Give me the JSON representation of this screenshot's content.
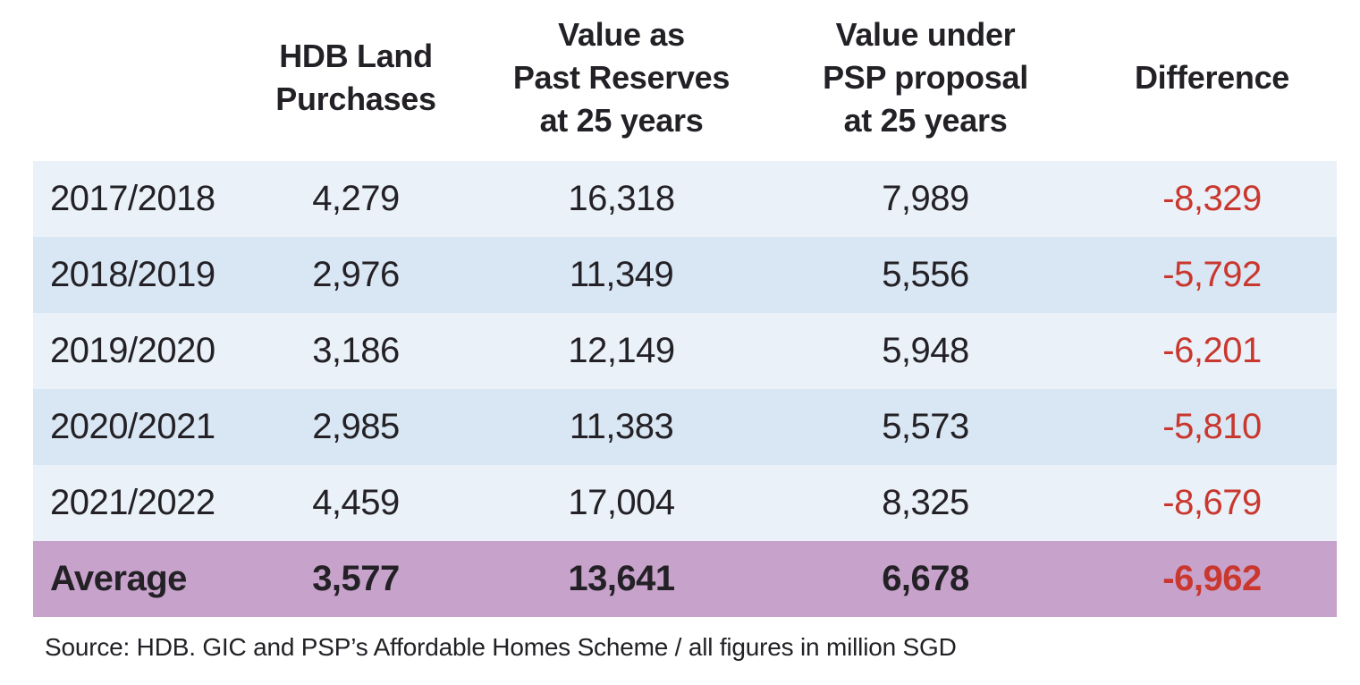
{
  "table": {
    "headers": {
      "year": "",
      "col1": "HDB Land\nPurchases",
      "col2": "Value as\nPast Reserves\nat 25 years",
      "col3": "Value under\nPSP proposal\nat 25 years",
      "col4": "Difference"
    },
    "rows": [
      {
        "year": "2017/2018",
        "hdb_land_purchases": "4,279",
        "value_past_reserves": "16,318",
        "value_psp_proposal": "7,989",
        "difference": "-8,329"
      },
      {
        "year": "2018/2019",
        "hdb_land_purchases": "2,976",
        "value_past_reserves": "11,349",
        "value_psp_proposal": "5,556",
        "difference": "-5,792"
      },
      {
        "year": "2019/2020",
        "hdb_land_purchases": "3,186",
        "value_past_reserves": "12,149",
        "value_psp_proposal": "5,948",
        "difference": "-6,201"
      },
      {
        "year": "2020/2021",
        "hdb_land_purchases": "2,985",
        "value_past_reserves": "11,383",
        "value_psp_proposal": "5,573",
        "difference": "-5,810"
      },
      {
        "year": "2021/2022",
        "hdb_land_purchases": "4,459",
        "value_past_reserves": "17,004",
        "value_psp_proposal": "8,325",
        "difference": "-8,679"
      }
    ],
    "average_row": {
      "year": "Average",
      "hdb_land_purchases": "3,577",
      "value_past_reserves": "13,641",
      "value_psp_proposal": "6,678",
      "difference": "-6,962"
    }
  },
  "source_note": "Source: HDB. GIC and PSP’s Affordable Homes Scheme / all figures in million SGD",
  "colors": {
    "row_light": "#EAF1F9",
    "row_dark": "#D9E6F3",
    "row_average": "#C7A2CB",
    "negative_text": "#C9372E",
    "body_text": "#232126",
    "background": "#FFFFFF"
  },
  "chart_data": {
    "type": "table",
    "title": "",
    "columns": [
      "",
      "HDB Land Purchases",
      "Value as Past Reserves at 25 years",
      "Value under PSP proposal at 25 years",
      "Difference"
    ],
    "rows": [
      {
        "label": "2017/2018",
        "values": [
          4279,
          16318,
          7989,
          -8329
        ]
      },
      {
        "label": "2018/2019",
        "values": [
          2976,
          11349,
          5556,
          -5792
        ]
      },
      {
        "label": "2019/2020",
        "values": [
          3186,
          12149,
          5948,
          -6201
        ]
      },
      {
        "label": "2020/2021",
        "values": [
          2985,
          11383,
          5573,
          -5810
        ]
      },
      {
        "label": "2021/2022",
        "values": [
          4459,
          17004,
          8325,
          -8679
        ]
      },
      {
        "label": "Average",
        "values": [
          3577,
          13641,
          6678,
          -6962
        ]
      }
    ],
    "units": "million SGD",
    "source": "Source: HDB. GIC and PSP’s Affordable Homes Scheme / all figures in million SGD",
    "layout_hints": {
      "striped_rows": true,
      "summary_row_highlight": "purple",
      "negative_values_color": "red"
    }
  }
}
